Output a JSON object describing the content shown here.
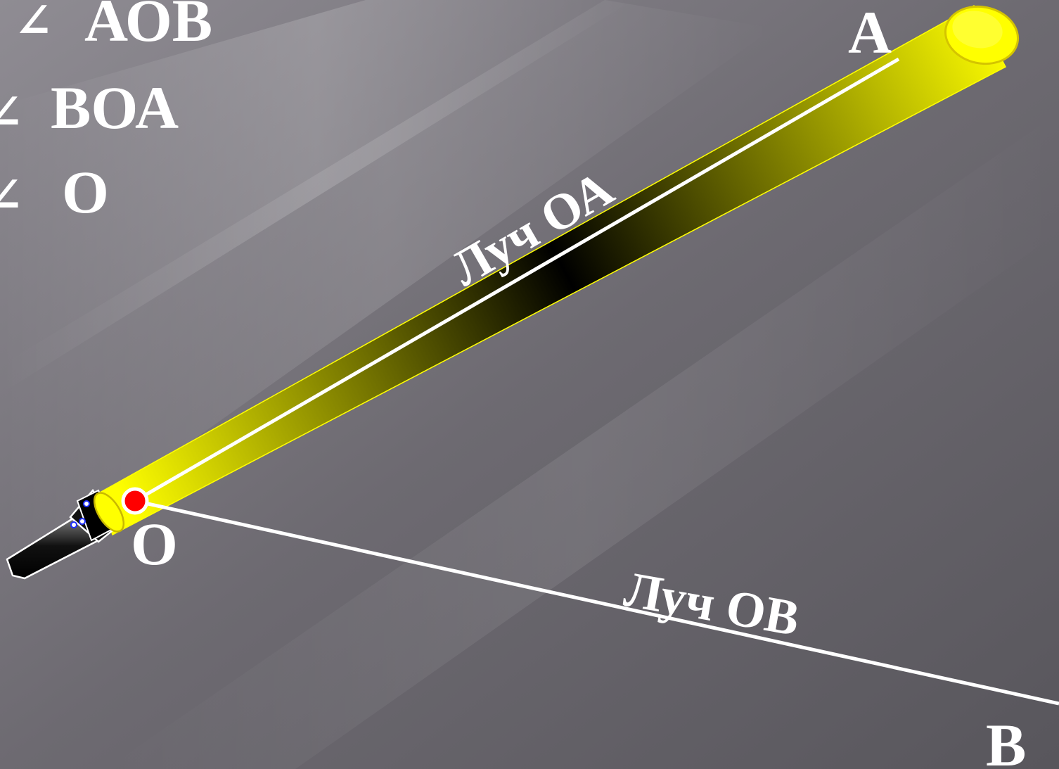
{
  "angle_notations": [
    {
      "symbol": "∠",
      "text": "АОВ"
    },
    {
      "symbol": "∠",
      "text": "ВОА"
    },
    {
      "symbol": "∠",
      "text": "О"
    }
  ],
  "points": {
    "a": "А",
    "o": "О",
    "b": "В"
  },
  "rays": {
    "oa": "Луч ОА",
    "ob": "Луч ОВ"
  },
  "colors": {
    "beam": "#ffff00",
    "vertex": "#ff0000",
    "line": "#ffffff"
  },
  "icons": {
    "light_source": "flashlight-icon"
  }
}
